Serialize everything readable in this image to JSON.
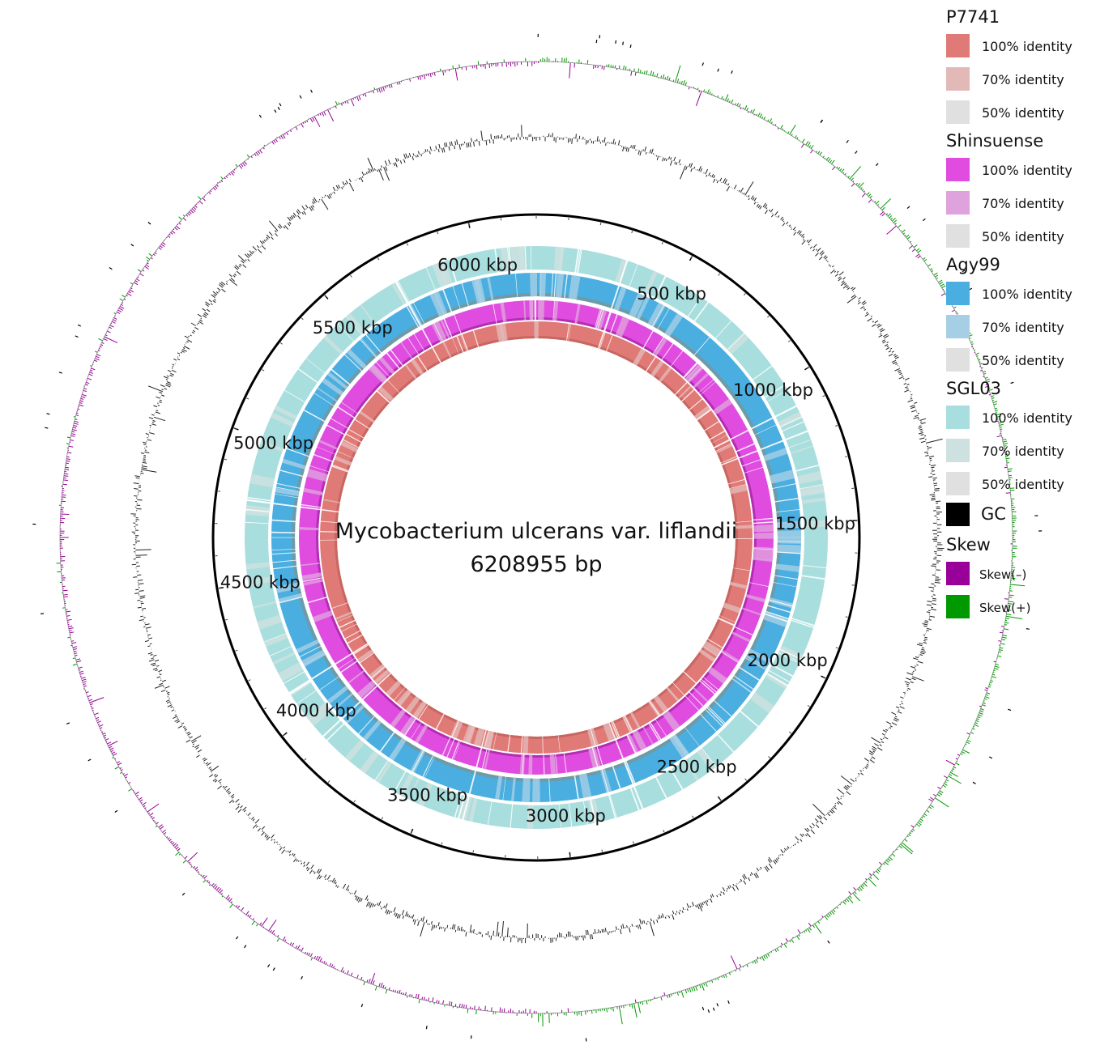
{
  "center": {
    "title": "Mycobacterium ulcerans var. liflandii",
    "length": "6208955 bp"
  },
  "genome_length_bp": 6208955,
  "tick_labels": [
    {
      "kbp": 500,
      "label": "500 kbp"
    },
    {
      "kbp": 1000,
      "label": "1000 kbp"
    },
    {
      "kbp": 1500,
      "label": "1500 kbp"
    },
    {
      "kbp": 2000,
      "label": "2000 kbp"
    },
    {
      "kbp": 2500,
      "label": "2500 kbp"
    },
    {
      "kbp": 3000,
      "label": "3000 kbp"
    },
    {
      "kbp": 3500,
      "label": "3500 kbp"
    },
    {
      "kbp": 4000,
      "label": "4000 kbp"
    },
    {
      "kbp": 4500,
      "label": "4500 kbp"
    },
    {
      "kbp": 5000,
      "label": "5000 kbp"
    },
    {
      "kbp": 5500,
      "label": "5500 kbp"
    },
    {
      "kbp": 6000,
      "label": "6000 kbp"
    }
  ],
  "rings": [
    {
      "name": "P7741",
      "color": "#e07a76",
      "light": "#e3b9b8"
    },
    {
      "name": "Shinsuense",
      "color": "#e04ce0",
      "light": "#dea2dc"
    },
    {
      "name": "Agy99",
      "color": "#4aaee0",
      "light": "#a6cfe6"
    },
    {
      "name": "SGL03",
      "color": "#a8dedd",
      "light": "#cde1e0"
    }
  ],
  "legend": {
    "groups": [
      {
        "title": "P7741",
        "items": [
          {
            "label": "100% identity",
            "color": "#e07a76"
          },
          {
            "label": "70% identity",
            "color": "#e3b9b8"
          },
          {
            "label": "50% identity",
            "color": "#e0e0e0"
          }
        ]
      },
      {
        "title": "Shinsuense",
        "items": [
          {
            "label": "100% identity",
            "color": "#e04ce0"
          },
          {
            "label": "70% identity",
            "color": "#dea2dc"
          },
          {
            "label": "50% identity",
            "color": "#e0e0e0"
          }
        ]
      },
      {
        "title": "Agy99",
        "items": [
          {
            "label": "100% identity",
            "color": "#4aaee0"
          },
          {
            "label": "70% identity",
            "color": "#a6cfe6"
          },
          {
            "label": "50% identity",
            "color": "#e0e0e0"
          }
        ]
      },
      {
        "title": "SGL03",
        "items": [
          {
            "label": "100% identity",
            "color": "#a8dedd"
          },
          {
            "label": "70% identity",
            "color": "#cde1e0"
          },
          {
            "label": "50% identity",
            "color": "#e0e0e0"
          }
        ]
      }
    ],
    "gc": {
      "label": "GC",
      "color": "#000000"
    },
    "skew": {
      "title": "Skew",
      "items": [
        {
          "label": "Skew(–)",
          "color": "#990099"
        },
        {
          "label": "Skew(+)",
          "color": "#009900"
        }
      ]
    }
  }
}
